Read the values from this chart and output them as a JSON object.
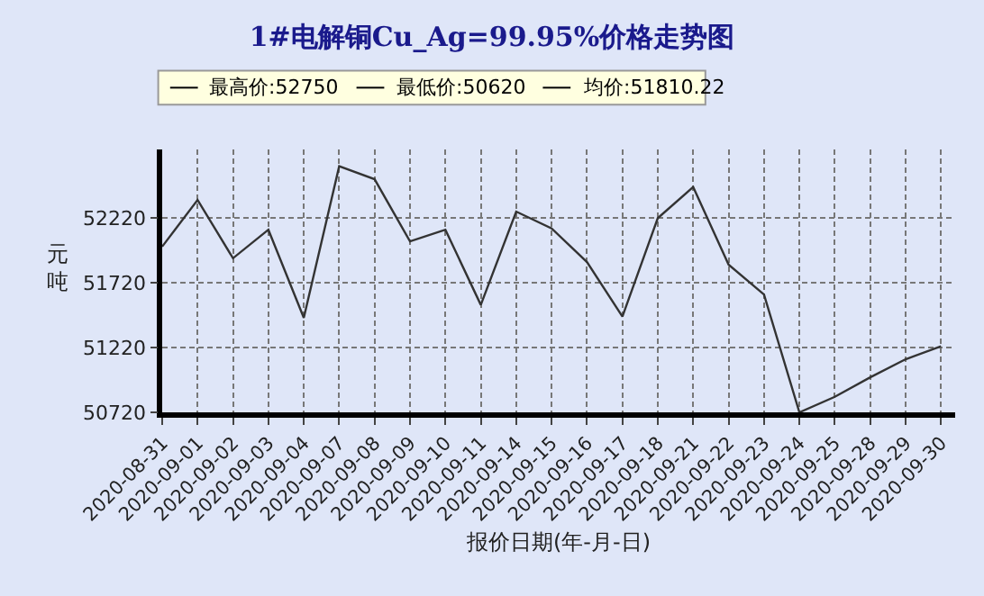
{
  "chart_data": {
    "type": "line",
    "title": "1#电解铜Cu_Ag=99.95%价格走势图",
    "xlabel": "报价日期(年-月-日)",
    "ylabel": "元吨",
    "categories": [
      "2020-08-31",
      "2020-09-01",
      "2020-09-02",
      "2020-09-03",
      "2020-09-04",
      "2020-09-07",
      "2020-09-08",
      "2020-09-09",
      "2020-09-10",
      "2020-09-11",
      "2020-09-14",
      "2020-09-15",
      "2020-09-16",
      "2020-09-17",
      "2020-09-18",
      "2020-09-21",
      "2020-09-22",
      "2020-09-23",
      "2020-09-24",
      "2020-09-25",
      "2020-09-28",
      "2020-09-29",
      "2020-09-30"
    ],
    "series": [
      {
        "color": "#333333",
        "values": [
          52000,
          52360,
          51910,
          52130,
          51450,
          52620,
          52520,
          52040,
          52130,
          51550,
          52270,
          52140,
          51880,
          51460,
          52220,
          52460,
          51860,
          51630,
          50720,
          50840,
          50990,
          51130,
          51230
        ]
      }
    ],
    "annotations": [
      "最高价:52750",
      "最低价:50620",
      "均价:51810.22"
    ],
    "ylim": [
      50720,
      52750
    ],
    "yticks": [
      50720,
      51220,
      51720,
      52220
    ],
    "grid": true,
    "line_style": "solid",
    "marker": "none"
  }
}
